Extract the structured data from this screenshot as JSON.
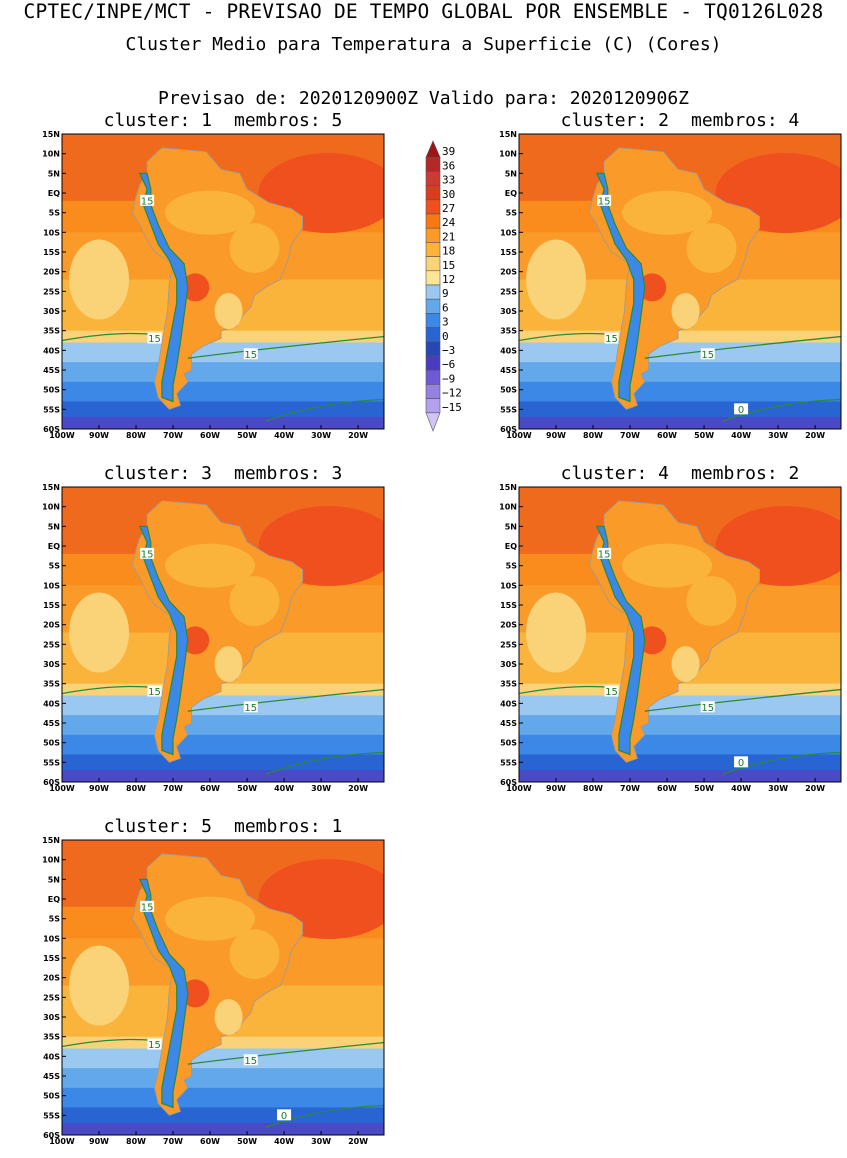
{
  "header": {
    "line1": "CPTEC/INPE/MCT - PREVISAO DE TEMPO GLOBAL POR ENSEMBLE - TQ0126L028",
    "line2": "Cluster Medio para Temperatura a Superficie (C) (Cores)",
    "line3": "Previsao de: 2020120900Z    Valido para: 2020120906Z"
  },
  "lat_labels": [
    "15N",
    "10N",
    "5N",
    "EQ",
    "5S",
    "10S",
    "15S",
    "20S",
    "25S",
    "30S",
    "35S",
    "40S",
    "45S",
    "50S",
    "55S",
    "60S"
  ],
  "lon_labels": [
    "100W",
    "90W",
    "80W",
    "70W",
    "60W",
    "50W",
    "40W",
    "30W",
    "20W"
  ],
  "panels": [
    {
      "cluster_label": "cluster:",
      "cluster_num": "1",
      "members_label": "membros:",
      "members_num": "5",
      "contours": [
        {
          "text": "15"
        },
        {
          "text": "15"
        },
        {
          "text": "15"
        }
      ]
    },
    {
      "cluster_label": "cluster:",
      "cluster_num": "2",
      "members_label": "membros:",
      "members_num": "4",
      "contours": [
        {
          "text": "15"
        },
        {
          "text": "15"
        },
        {
          "text": "15"
        },
        {
          "text": "0"
        }
      ]
    },
    {
      "cluster_label": "cluster:",
      "cluster_num": "3",
      "members_label": "membros:",
      "members_num": "3",
      "contours": [
        {
          "text": "15"
        },
        {
          "text": "15"
        },
        {
          "text": "15"
        }
      ]
    },
    {
      "cluster_label": "cluster:",
      "cluster_num": "4",
      "members_label": "membros:",
      "members_num": "2",
      "contours": [
        {
          "text": "15"
        },
        {
          "text": "15"
        },
        {
          "text": "15"
        },
        {
          "text": "0"
        }
      ]
    },
    {
      "cluster_label": "cluster:",
      "cluster_num": "5",
      "members_label": "membros:",
      "members_num": "1",
      "contours": [
        {
          "text": "15"
        },
        {
          "text": "15"
        },
        {
          "text": "15"
        },
        {
          "text": "0"
        }
      ]
    }
  ],
  "colorbar": {
    "labels": [
      "39",
      "36",
      "33",
      "30",
      "27",
      "24",
      "21",
      "18",
      "15",
      "12",
      "9",
      "6",
      "3",
      "0",
      "-3",
      "-6",
      "-9",
      "-12",
      "-15"
    ],
    "colors": [
      "#a01418",
      "#b4282a",
      "#c83c32",
      "#dc3c1e",
      "#f0501e",
      "#fa7814",
      "#fa9a28",
      "#fab43c",
      "#fad278",
      "#fae696",
      "#9ac8f0",
      "#64a8ec",
      "#3c88e6",
      "#2864d2",
      "#2846b4",
      "#4a3cc0",
      "#6e5ad2",
      "#9680e0",
      "#b4a0ec",
      "#d2c4f4"
    ]
  }
}
